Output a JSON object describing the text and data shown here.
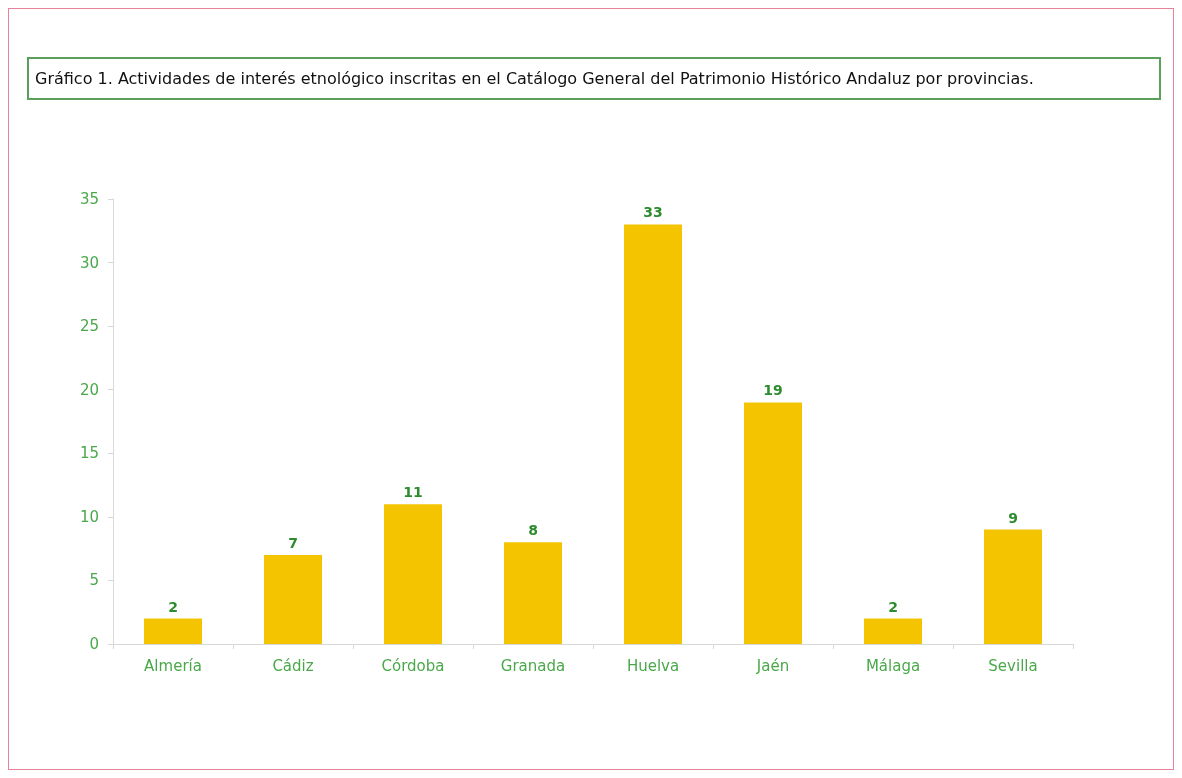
{
  "chart_data": {
    "type": "bar",
    "title": "Gráfico 1. Actividades de interés etnológico inscritas en el Catálogo General del Patrimonio Histórico Andaluz por provincias.",
    "categories": [
      "Almería",
      "Cádiz",
      "Córdoba",
      "Granada",
      "Huelva",
      "Jaén",
      "Málaga",
      "Sevilla"
    ],
    "values": [
      2,
      7,
      11,
      8,
      33,
      19,
      2,
      9
    ],
    "color": "#f5c400",
    "ylim": [
      0,
      35
    ],
    "yticks": [
      0,
      5,
      10,
      15,
      20,
      25,
      30,
      35
    ],
    "grid": false,
    "data_labels": true
  }
}
